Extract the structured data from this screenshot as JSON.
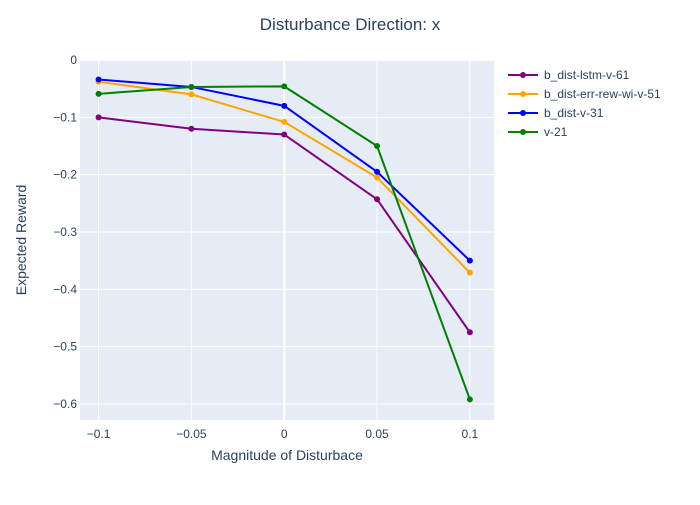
{
  "chart_data": {
    "type": "line",
    "title": "Disturbance Direction: x",
    "xlabel": "Magnitude of Disturbace",
    "ylabel": "Expected Reward",
    "x": [
      -0.1,
      -0.05,
      0,
      0.05,
      0.1
    ],
    "x_tick_labels": [
      "−0.1",
      "−0.05",
      "0",
      "0.05",
      "0.1"
    ],
    "y_tick_values": [
      0,
      -0.1,
      -0.2,
      -0.3,
      -0.4,
      -0.5,
      -0.6
    ],
    "y_tick_labels": [
      "0",
      "−0.1",
      "−0.2",
      "−0.3",
      "−0.4",
      "−0.5",
      "−0.6"
    ],
    "xlim": [
      -0.11,
      0.113
    ],
    "ylim": [
      -0.628,
      0.0
    ],
    "grid": true,
    "legend_position": "right",
    "colors": {
      "plot_background": "#e5ecf6",
      "grid": "#ffffff",
      "text": "#2a3f5f"
    },
    "series": [
      {
        "name": "b_dist-lstm-v-61",
        "color": "#800080",
        "values": [
          -0.1,
          -0.12,
          -0.13,
          -0.243,
          -0.475
        ]
      },
      {
        "name": "b_dist-err-rew-wi-v-51",
        "color": "#ffa500",
        "values": [
          -0.038,
          -0.06,
          -0.108,
          -0.205,
          -0.371
        ]
      },
      {
        "name": "b_dist-v-31",
        "color": "#0000ff",
        "values": [
          -0.034,
          -0.047,
          -0.08,
          -0.195,
          -0.35
        ]
      },
      {
        "name": "v-21",
        "color": "#008000",
        "values": [
          -0.059,
          -0.047,
          -0.046,
          -0.15,
          -0.592
        ]
      }
    ]
  }
}
